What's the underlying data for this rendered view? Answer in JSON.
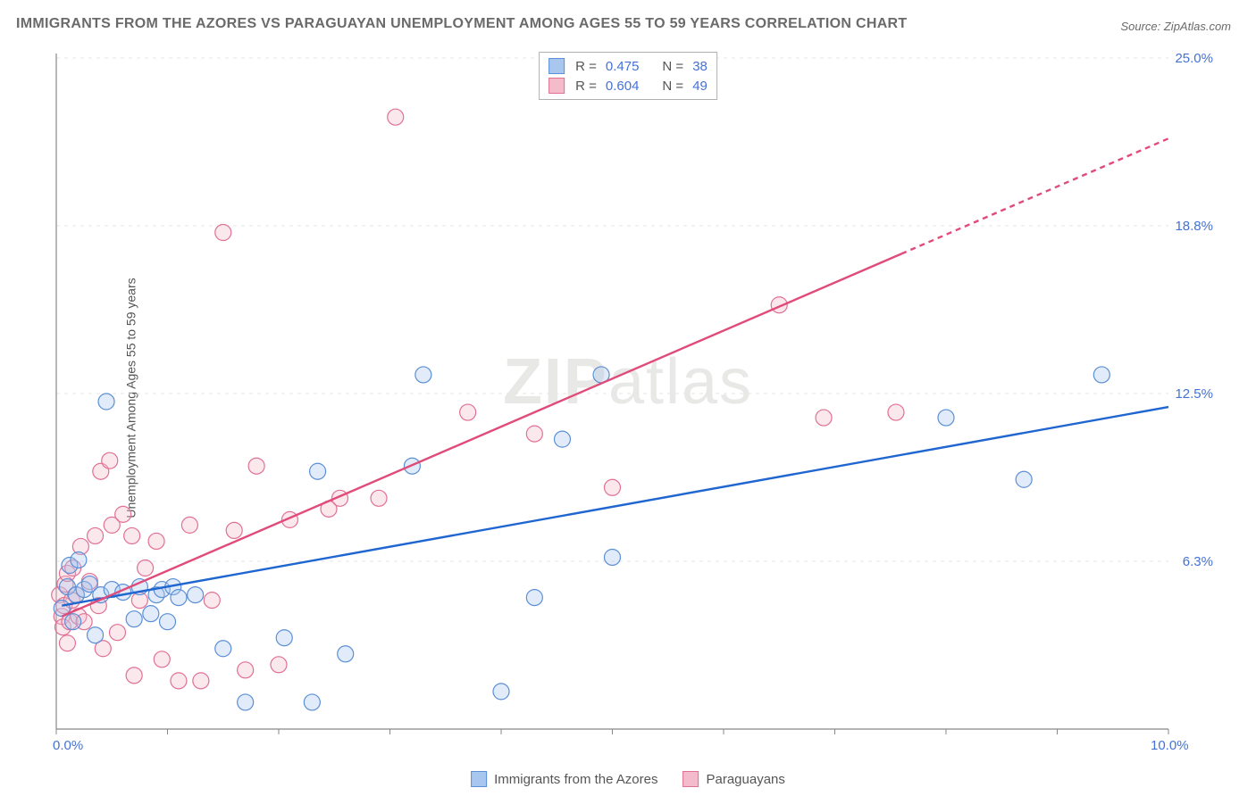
{
  "title": "IMMIGRANTS FROM THE AZORES VS PARAGUAYAN UNEMPLOYMENT AMONG AGES 55 TO 59 YEARS CORRELATION CHART",
  "source": "Source: ZipAtlas.com",
  "ylabel": "Unemployment Among Ages 55 to 59 years",
  "watermark_bold": "ZIP",
  "watermark_rest": "atlas",
  "chart": {
    "type": "scatter",
    "background_color": "#ffffff",
    "grid_color": "#e6e6e6",
    "axis_color": "#888888",
    "xlim": [
      0,
      10
    ],
    "ylim": [
      0,
      25
    ],
    "x_ticks": [
      0,
      1,
      2,
      3,
      4,
      5,
      6,
      7,
      8,
      9,
      10
    ],
    "y_ticks": [
      6.25,
      12.5,
      18.75,
      25.0
    ],
    "y_tick_labels": [
      "6.3%",
      "12.5%",
      "18.8%",
      "25.0%"
    ],
    "x_start_label": "0.0%",
    "x_end_label": "10.0%",
    "x_label_color": "#4472d4",
    "y_label_color": "#4472d4",
    "marker_radius": 9,
    "marker_stroke_width": 1.2,
    "marker_fill_opacity": 0.35,
    "trend_line_width": 2.4,
    "trend_dash": "6,5"
  },
  "series": [
    {
      "name": "Immigrants from the Azores",
      "color_fill": "#a8c6ee",
      "color_stroke": "#5b8fd6",
      "trend_color": "#1f66d0",
      "R": "0.475",
      "N": "38",
      "trend": {
        "x1": 0.05,
        "y1": 4.6,
        "x2": 10.0,
        "y2": 12.0,
        "solid_until_x": 10.0
      },
      "points": [
        [
          0.05,
          4.5
        ],
        [
          0.1,
          5.3
        ],
        [
          0.12,
          6.1
        ],
        [
          0.15,
          4.0
        ],
        [
          0.18,
          5.0
        ],
        [
          0.2,
          6.3
        ],
        [
          0.25,
          5.2
        ],
        [
          0.3,
          5.4
        ],
        [
          0.35,
          3.5
        ],
        [
          0.4,
          5.0
        ],
        [
          0.45,
          12.2
        ],
        [
          0.5,
          5.2
        ],
        [
          0.6,
          5.1
        ],
        [
          0.7,
          4.1
        ],
        [
          0.75,
          5.3
        ],
        [
          0.85,
          4.3
        ],
        [
          0.9,
          5.0
        ],
        [
          0.95,
          5.2
        ],
        [
          1.0,
          4.0
        ],
        [
          1.05,
          5.3
        ],
        [
          1.1,
          4.9
        ],
        [
          1.25,
          5.0
        ],
        [
          1.5,
          3.0
        ],
        [
          1.7,
          1.0
        ],
        [
          2.05,
          3.4
        ],
        [
          2.3,
          1.0
        ],
        [
          2.35,
          9.6
        ],
        [
          2.6,
          2.8
        ],
        [
          3.2,
          9.8
        ],
        [
          3.3,
          13.2
        ],
        [
          4.0,
          1.4
        ],
        [
          4.3,
          4.9
        ],
        [
          4.55,
          10.8
        ],
        [
          4.9,
          13.2
        ],
        [
          5.0,
          6.4
        ],
        [
          8.0,
          11.6
        ],
        [
          8.7,
          9.3
        ],
        [
          9.4,
          13.2
        ]
      ]
    },
    {
      "name": "Paraguayans",
      "color_fill": "#f4bccb",
      "color_stroke": "#e17095",
      "trend_color": "#e04b7a",
      "R": "0.604",
      "N": "49",
      "trend": {
        "x1": 0.05,
        "y1": 4.2,
        "x2": 10.0,
        "y2": 22.0,
        "solid_until_x": 7.6
      },
      "points": [
        [
          0.03,
          5.0
        ],
        [
          0.05,
          4.2
        ],
        [
          0.06,
          3.8
        ],
        [
          0.07,
          4.6
        ],
        [
          0.08,
          5.4
        ],
        [
          0.1,
          3.2
        ],
        [
          0.1,
          5.8
        ],
        [
          0.12,
          4.0
        ],
        [
          0.14,
          4.8
        ],
        [
          0.15,
          6.0
        ],
        [
          0.18,
          5.0
        ],
        [
          0.2,
          4.2
        ],
        [
          0.22,
          6.8
        ],
        [
          0.25,
          4.0
        ],
        [
          0.3,
          5.5
        ],
        [
          0.35,
          7.2
        ],
        [
          0.38,
          4.6
        ],
        [
          0.4,
          9.6
        ],
        [
          0.42,
          3.0
        ],
        [
          0.48,
          10.0
        ],
        [
          0.5,
          7.6
        ],
        [
          0.55,
          3.6
        ],
        [
          0.6,
          8.0
        ],
        [
          0.68,
          7.2
        ],
        [
          0.7,
          2.0
        ],
        [
          0.75,
          4.8
        ],
        [
          0.8,
          6.0
        ],
        [
          0.9,
          7.0
        ],
        [
          0.95,
          2.6
        ],
        [
          1.1,
          1.8
        ],
        [
          1.2,
          7.6
        ],
        [
          1.3,
          1.8
        ],
        [
          1.4,
          4.8
        ],
        [
          1.5,
          18.5
        ],
        [
          1.6,
          7.4
        ],
        [
          1.7,
          2.2
        ],
        [
          1.8,
          9.8
        ],
        [
          2.0,
          2.4
        ],
        [
          2.1,
          7.8
        ],
        [
          2.45,
          8.2
        ],
        [
          2.55,
          8.6
        ],
        [
          2.9,
          8.6
        ],
        [
          3.05,
          22.8
        ],
        [
          3.7,
          11.8
        ],
        [
          4.3,
          11.0
        ],
        [
          5.0,
          9.0
        ],
        [
          6.5,
          15.8
        ],
        [
          6.9,
          11.6
        ],
        [
          7.55,
          11.8
        ]
      ]
    }
  ],
  "stat_box": {
    "r_label": "R  =",
    "n_label": "N  ="
  },
  "legend": {
    "label_a": "Immigrants from the Azores",
    "label_b": "Paraguayans"
  }
}
